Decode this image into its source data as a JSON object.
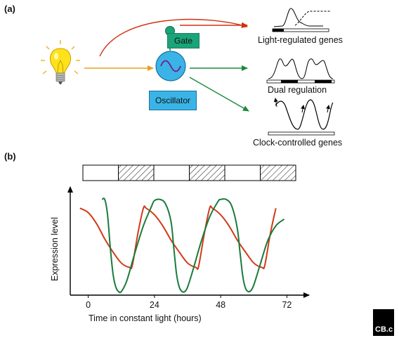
{
  "figure": {
    "panel_a_label": "(a)",
    "panel_b_label": "(b)"
  },
  "panel_a": {
    "gate_label": "Gate",
    "oscillator_label": "Oscillator",
    "gene_labels": {
      "light_regulated": "Light-regulated genes",
      "dual": "Dual regulation",
      "clock_controlled": "Clock-controlled genes"
    },
    "colors": {
      "light_arrow": "#e8a020",
      "red_arrow": "#d03010",
      "green_arrow": "#1a8a3c",
      "gate_fill": "#1aa478",
      "oscillator_fill": "#3ab4e6",
      "bulb_fill": "#ffe21a",
      "sine_color": "#7a1a8a"
    },
    "icons": [
      "light-bulb-icon",
      "oscillator-circle-icon",
      "gate-knob-icon"
    ]
  },
  "panel_b": {
    "chart_data": {
      "type": "line",
      "xlabel": "Time in constant light (hours)",
      "ylabel": "Expression level",
      "x_ticks": [
        0,
        24,
        48,
        72
      ],
      "xlim": [
        -6,
        78
      ],
      "light_dark_bar": [
        "light",
        "dark",
        "light",
        "dark",
        "light",
        "dark"
      ],
      "series": [
        {
          "color": "#d23a18",
          "x": [
            -3,
            0,
            3,
            6,
            9,
            12,
            15,
            16,
            18,
            20,
            21,
            24,
            27,
            30,
            33,
            36,
            39,
            40,
            42,
            44,
            45,
            48,
            51,
            54,
            57,
            60,
            63,
            64,
            66,
            68
          ],
          "y": [
            0.78,
            0.74,
            0.64,
            0.5,
            0.38,
            0.28,
            0.24,
            0.26,
            0.55,
            0.78,
            0.78,
            0.72,
            0.62,
            0.49,
            0.38,
            0.28,
            0.24,
            0.25,
            0.54,
            0.78,
            0.78,
            0.72,
            0.62,
            0.49,
            0.38,
            0.28,
            0.24,
            0.26,
            0.55,
            0.78
          ]
        },
        {
          "color": "#1a7a3c",
          "x": [
            5,
            6,
            7,
            8,
            9,
            10,
            11,
            12,
            14,
            17,
            20,
            23,
            24,
            26,
            28,
            30,
            31,
            32,
            33,
            34,
            35,
            36,
            38,
            41,
            44,
            47,
            48,
            50,
            52,
            54,
            55,
            56,
            57,
            58,
            59,
            60,
            62,
            65,
            68,
            71
          ],
          "y": [
            0.86,
            0.86,
            0.72,
            0.42,
            0.18,
            0.06,
            0.02,
            0.02,
            0.12,
            0.38,
            0.62,
            0.8,
            0.85,
            0.86,
            0.82,
            0.66,
            0.42,
            0.18,
            0.06,
            0.02,
            0.02,
            0.06,
            0.22,
            0.48,
            0.7,
            0.84,
            0.86,
            0.86,
            0.8,
            0.6,
            0.38,
            0.16,
            0.05,
            0.02,
            0.03,
            0.08,
            0.24,
            0.48,
            0.62,
            0.68
          ]
        }
      ]
    }
  },
  "logo": {
    "text": "CB.c"
  }
}
